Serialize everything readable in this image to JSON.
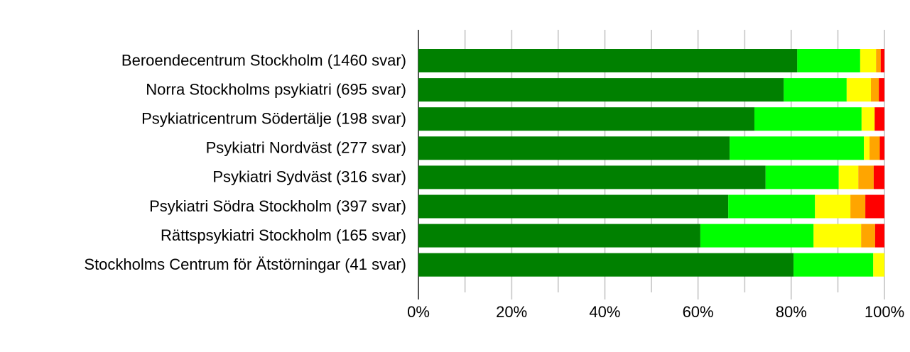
{
  "chart_data": {
    "type": "stacked_bar_horizontal",
    "categories": [
      "Beroendecentrum Stockholm (1460 svar)",
      "Norra Stockholms psykiatri (695 svar)",
      "Psykiatricentrum Södertälje (198 svar)",
      "Psykiatri Nordväst (277 svar)",
      "Psykiatri Sydväst (316 svar)",
      "Psykiatri Södra Stockholm (397 svar)",
      "Rättspsykiatri Stockholm (165 svar)",
      "Stockholms Centrum för Ätstörningar (41 svar)"
    ],
    "series": [
      {
        "color": "#008000",
        "values": [
          81.3,
          78.4,
          72.1,
          66.8,
          74.5,
          66.5,
          60.5,
          80.5
        ]
      },
      {
        "color": "#00ff00",
        "values": [
          13.5,
          13.5,
          23.0,
          28.8,
          15.7,
          18.6,
          24.3,
          17.1
        ]
      },
      {
        "color": "#ffff00",
        "values": [
          3.4,
          5.2,
          2.8,
          1.2,
          4.2,
          7.6,
          10.2,
          2.4
        ]
      },
      {
        "color": "#ffa500",
        "values": [
          1.0,
          1.7,
          0,
          2.2,
          3.3,
          3.2,
          3.0,
          0
        ]
      },
      {
        "color": "#ff0000",
        "values": [
          0.8,
          1.2,
          2.1,
          1.0,
          2.3,
          4.1,
          2.0,
          0
        ]
      }
    ],
    "xlim": [
      0,
      100
    ],
    "xticks": [
      {
        "value": 0,
        "label": "0%"
      },
      {
        "value": 20,
        "label": "20%"
      },
      {
        "value": 40,
        "label": "40%"
      },
      {
        "value": 60,
        "label": "60%"
      },
      {
        "value": 80,
        "label": "80%"
      },
      {
        "value": 100,
        "label": "100%"
      }
    ],
    "minor_xticks": [
      10,
      30,
      50,
      70,
      90
    ],
    "grid": true
  }
}
